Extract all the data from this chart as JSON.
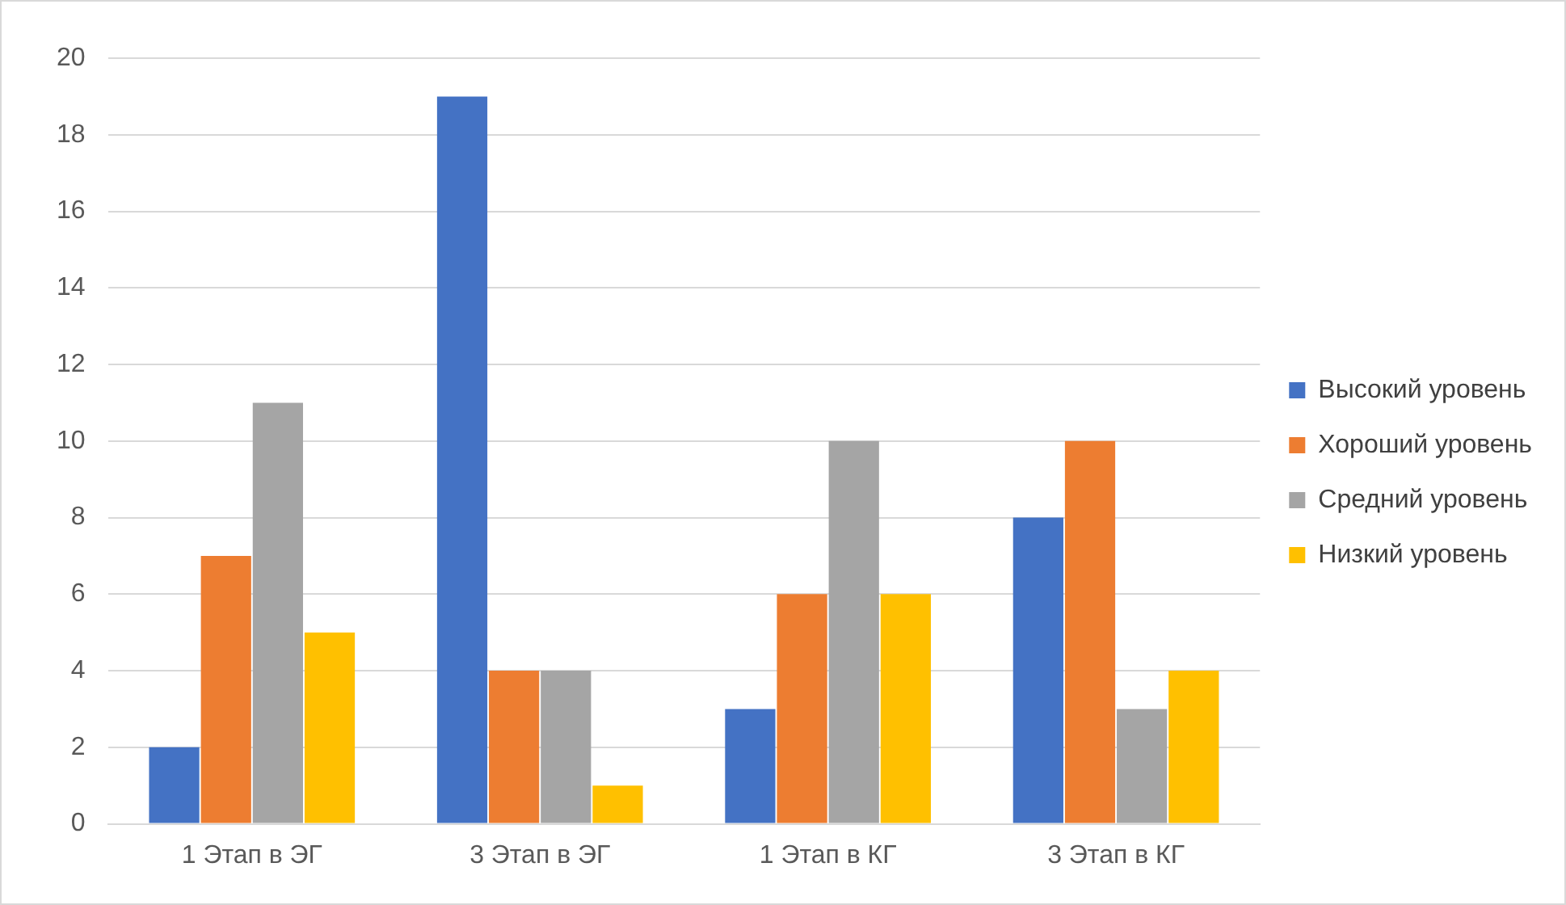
{
  "chart_data": {
    "type": "bar",
    "categories": [
      "1 Этап в ЭГ",
      "3 Этап в ЭГ",
      "1 Этап в КГ",
      "3 Этап в КГ"
    ],
    "series": [
      {
        "name": "Высокий уровень",
        "color": "#4472c4",
        "values": [
          2,
          19,
          3,
          8
        ]
      },
      {
        "name": "Хороший уровень",
        "color": "#ed7d31",
        "values": [
          7,
          4,
          6,
          10
        ]
      },
      {
        "name": "Средний уровень",
        "color": "#a5a5a5",
        "values": [
          11,
          4,
          10,
          3
        ]
      },
      {
        "name": "Низкий уровень",
        "color": "#ffc000",
        "values": [
          5,
          1,
          6,
          4
        ]
      }
    ],
    "ylim": [
      0,
      20
    ],
    "yticks": [
      0,
      2,
      4,
      6,
      8,
      10,
      12,
      14,
      16,
      18,
      20
    ],
    "grid": "y",
    "legend": "right"
  }
}
